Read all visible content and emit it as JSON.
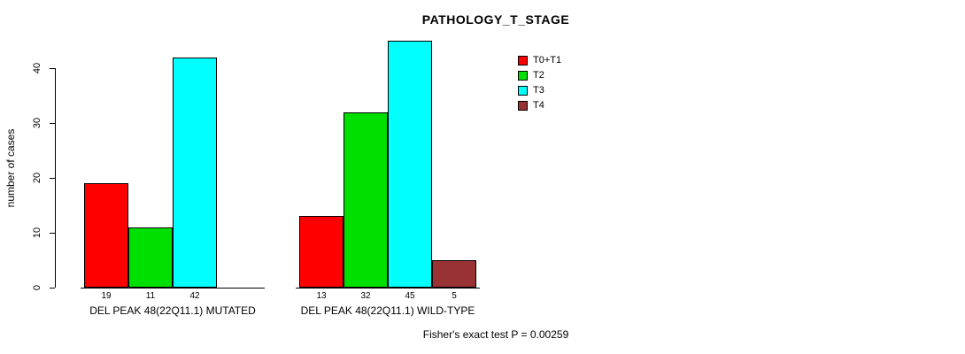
{
  "title": "PATHOLOGY_T_STAGE",
  "footnote": "Fisher's exact test P = 0.00259",
  "chart_data": {
    "type": "bar",
    "title": "PATHOLOGY_T_STAGE",
    "xlabel": "",
    "ylabel": "number of cases",
    "ylim": [
      0,
      46
    ],
    "yticks": [
      0,
      10,
      20,
      30,
      40
    ],
    "grid": false,
    "legend_position": "top-right",
    "categories": [
      "DEL PEAK 48(22Q11.1) MUTATED",
      "DEL PEAK 48(22Q11.1) WILD-TYPE"
    ],
    "series": [
      {
        "name": "T0+T1",
        "color": "#FF0000",
        "values": [
          19,
          13
        ]
      },
      {
        "name": "T2",
        "color": "#00E000",
        "values": [
          11,
          32
        ]
      },
      {
        "name": "T3",
        "color": "#00FFFF",
        "values": [
          42,
          45
        ]
      },
      {
        "name": "T4",
        "color": "#993333",
        "values": [
          0,
          5
        ]
      }
    ],
    "groups": [
      {
        "label": "DEL PEAK 48(22Q11.1) MUTATED",
        "values": [
          19,
          11,
          42,
          0
        ]
      },
      {
        "label": "DEL PEAK 48(22Q11.1) WILD-TYPE",
        "values": [
          13,
          32,
          45,
          5
        ]
      }
    ],
    "annotation": "Fisher's exact test P = 0.00259"
  }
}
